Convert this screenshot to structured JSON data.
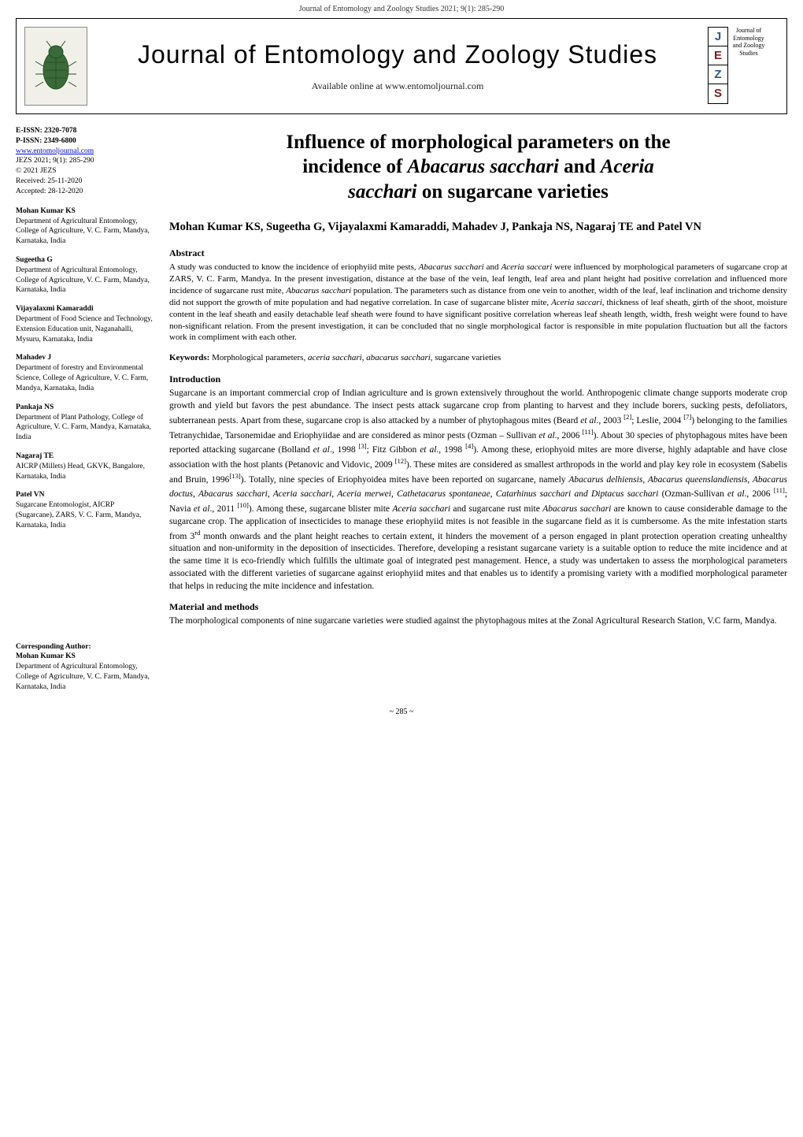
{
  "header_strip": "Journal of Entomology and Zoology Studies 2021; 9(1): 285-290",
  "masthead": {
    "title": "Journal of Entomology and Zoology Studies",
    "subtitle": "Available online at www.entomoljournal.com"
  },
  "right_badge": {
    "letters": [
      "J",
      "E",
      "Z",
      "S"
    ],
    "colors": [
      "#2e5a8a",
      "#7a2020",
      "#2e5a8a",
      "#7a2020"
    ],
    "caption": "Journal of Entomology and Zoology Studies"
  },
  "sidebar": {
    "issn": {
      "e": "E-ISSN: 2320-7078",
      "p": "P-ISSN: 2349-6800",
      "url": "www.entomoljournal.com",
      "jezs": "JEZS 2021; 9(1): 285-290",
      "copy": "© 2021 JEZS",
      "received": "Received: 25-11-2020",
      "accepted": "Accepted: 28-12-2020"
    },
    "authors": [
      {
        "name": "Mohan Kumar KS",
        "aff": "Department of Agricultural Entomology, College of Agriculture, V. C. Farm, Mandya, Karnataka, India"
      },
      {
        "name": "Sugeetha G",
        "aff": "Department of Agricultural Entomology, College of Agriculture, V. C. Farm, Mandya, Karnataka, India"
      },
      {
        "name": "Vijayalaxmi Kamaraddi",
        "aff": "Department of Food Science and Technology, Extension Education unit, Naganahalli, Mysuru, Karnataka, India"
      },
      {
        "name": "Mahadev J",
        "aff": "Department of forestry and Environmental Science, College of Agriculture, V. C. Farm, Mandya, Karnataka, India"
      },
      {
        "name": "Pankaja NS",
        "aff": "Department of Plant Pathology, College of Agriculture, V. C. Farm, Mandya, Karnataka, India"
      },
      {
        "name": "Nagaraj TE",
        "aff": "AICRP (Millets) Head, GKVK, Bangalore, Karnataka, India"
      },
      {
        "name": "Patel VN",
        "aff": "Sugarcane Entomologist, AICRP (Sugarcane), ZARS, V. C. Farm, Mandya, Karnataka, India"
      }
    ],
    "corresponding": {
      "label": "Corresponding Author:",
      "name": "Mohan Kumar KS",
      "aff": "Department of Agricultural Entomology, College of Agriculture, V. C. Farm, Mandya, Karnataka, India"
    }
  },
  "article": {
    "title_line1": "Influence of morphological parameters on the",
    "title_line2": "incidence of ",
    "title_it1": "Abacarus sacchari",
    "title_and": " and ",
    "title_it2": "Aceria",
    "title_line3_it": "sacchari",
    "title_line3_rest": " on sugarcane varieties",
    "authors_line": "Mohan Kumar KS, Sugeetha G, Vijayalaxmi Kamaraddi, Mahadev J, Pankaja NS, Nagaraj TE and Patel VN",
    "abstract_head": "Abstract",
    "abstract_body_1": "A study was conducted to know the incidence of eriophyiid mite pests, ",
    "abstract_it1": "Abacarus sacchari",
    "abstract_body_2": " and ",
    "abstract_it2": "Aceria saccari",
    "abstract_body_3": " were influenced by morphological parameters of sugarcane crop at ZARS, V. C. Farm, Mandya. In the present investigation, distance at the base of the vein, leaf length, leaf area and plant height had positive correlation and influenced more incidence of sugarcane rust mite, ",
    "abstract_it3": "Abacarus sacchari",
    "abstract_body_4": " population. The parameters such as distance from one vein to another, width of the leaf, leaf inclination and trichome density did not support the growth of mite population and had negative correlation. In case of sugarcane blister mite, ",
    "abstract_it4": "Aceria saccari,",
    "abstract_body_5": " thickness of leaf sheath, girth of the shoot, moisture content in the leaf sheath and easily detachable leaf sheath were found to have significant positive correlation whereas leaf sheath length, width, fresh weight were found to have non-significant relation. From the present investigation, it can be concluded that no single morphological factor is responsible in mite population fluctuation but all the factors work in compliment with each other.",
    "keywords_label": "Keywords:",
    "keywords_text_1": " Morphological parameters, ",
    "keywords_it1": "aceria sacchari",
    "keywords_sep": ", ",
    "keywords_it2": "abacarus sacchari,",
    "keywords_text_2": " sugarcane varieties",
    "intro_head": "Introduction",
    "intro_p1a": "Sugarcane is an important commercial crop of Indian agriculture and is grown extensively throughout the world. Anthropogenic climate change supports moderate crop growth and yield but favors the pest abundance. The insect pests attack sugarcane crop from planting to harvest and they include borers, sucking pests, defoliators, subterranean pests. Apart from these, sugarcane crop is also attacked by a number of phytophagous mites (Beard ",
    "intro_etal": "et al",
    "intro_p1b": "., 2003 ",
    "intro_ref2": "[2]",
    "intro_p1c": "; Leslie, 2004 ",
    "intro_ref7": "[7]",
    "intro_p1d": ") belonging to the families Tetranychidae, Tarsonemidae and Eriophyiidae and are considered as minor pests (Ozman – Sullivan ",
    "intro_p1e": " 2006 ",
    "intro_ref11": "[11]",
    "intro_p1f": "). About 30 species of phytophagous mites have been reported attacking sugarcane (Bolland ",
    "intro_p1g": "., 1998 ",
    "intro_ref3": "[3]",
    "intro_p1h": "; Fitz Gibbon ",
    "intro_p1i": "., 1998 ",
    "intro_ref4": "[4]",
    "intro_p1j": "). Among these, eriophyoid mites are more diverse, highly adaptable and have close association with the host plants (Petanovic and Vidovic, 2009 ",
    "intro_ref12": "[12]",
    "intro_p1k": "). These mites are considered as smallest arthropods in the world and play key role in ecosystem (Sabelis and Bruin, 1996",
    "intro_ref13": "[13]",
    "intro_p1l": "). Totally, nine species of Eriophyoidea mites have been reported on sugarcane, namely ",
    "intro_species": "Abacarus delhiensis, Abacarus queenslandiensis, Abacarus doctus, Abacarus sacchari, Aceria sacchari, Aceria merwei, Cathetacarus spontaneae, Catarhinus sacchari and Diptacus sacchari",
    "intro_p1m": " (Ozman-Sullivan ",
    "intro_p1n": "., 2006 ",
    "intro_p1o": "; Navia ",
    "intro_p1p": "., 2011 ",
    "intro_ref10": "[10]",
    "intro_p1q": "). Among these, sugarcane blister mite ",
    "intro_sp1": "Aceria sacchari",
    "intro_p1r": " and sugarcane rust mite ",
    "intro_sp2": "Abacarus sacchari",
    "intro_p1s": " are known to cause considerable damage to the sugarcane crop. The application of insecticides to manage these eriophyiid mites is not feasible in the sugarcane field as it is cumbersome. As the mite infestation starts from 3",
    "intro_rd": "rd",
    "intro_p1t": " month onwards and the plant height reaches to certain extent, it hinders the movement of a person engaged in plant protection operation creating unhealthy situation and non-uniformity in the deposition of insecticides. Therefore, developing a resistant sugarcane variety is a suitable option to reduce the mite incidence and at the same time it is eco-friendly which fulfills the ultimate goal of integrated pest management. Hence, a study was undertaken to assess the morphological parameters associated with the different varieties of sugarcane against eriophyiid mites and that enables us to identify a promising variety with a modified morphological parameter that helps in reducing the mite incidence and infestation.",
    "mm_head": "Material and methods",
    "mm_body": "The morphological components of nine sugarcane varieties were studied against the phytophagous mites at the Zonal Agricultural Research Station, V.C farm, Mandya."
  },
  "page_number": "~ 285 ~",
  "colors": {
    "link": "#0000cc",
    "j_color": "#2e5a8a",
    "e_color": "#7a2020"
  }
}
